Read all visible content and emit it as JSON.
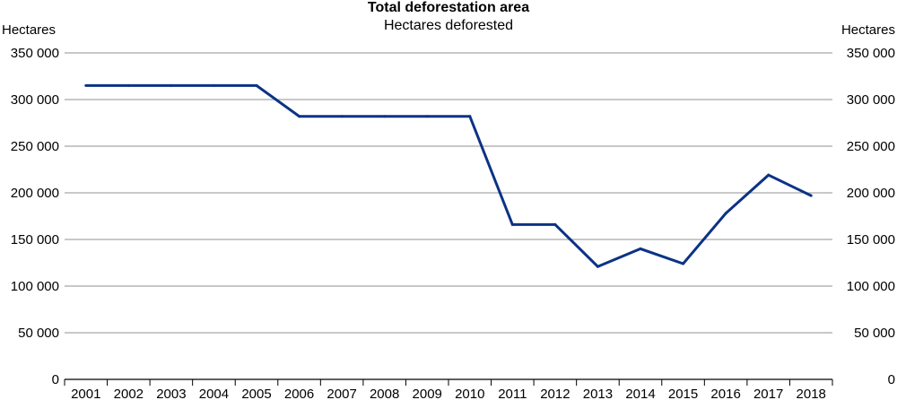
{
  "chart_data": {
    "type": "line",
    "title": "Total deforestation area",
    "subtitle": "Hectares deforested",
    "ylabel_left": "Hectares",
    "ylabel_right": "Hectares",
    "xlabel": "",
    "ylim": [
      0,
      350000
    ],
    "yticks": [
      0,
      50000,
      100000,
      150000,
      200000,
      250000,
      300000,
      350000
    ],
    "ytick_labels": [
      "0",
      "50 000",
      "100 000",
      "150 000",
      "200 000",
      "250 000",
      "300 000",
      "350 000"
    ],
    "categories": [
      "2001",
      "2002",
      "2003",
      "2004",
      "2005",
      "2006",
      "2007",
      "2008",
      "2009",
      "2010",
      "2011",
      "2012",
      "2013",
      "2014",
      "2015",
      "2016",
      "2017",
      "2018"
    ],
    "series": [
      {
        "values": [
          315000,
          315000,
          315000,
          315000,
          315000,
          282000,
          282000,
          282000,
          282000,
          282000,
          166000,
          166000,
          121000,
          140000,
          124000,
          178000,
          219000,
          197000
        ]
      }
    ],
    "line_color": "#0b3385",
    "grid": true,
    "grid_color": "#a6a6a6",
    "legend": "none"
  }
}
